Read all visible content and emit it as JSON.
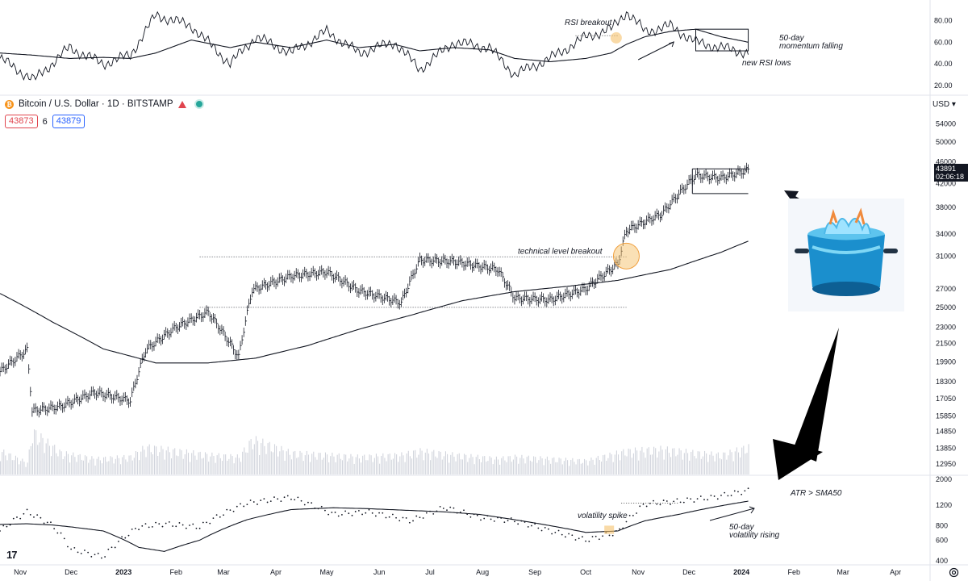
{
  "header": {
    "symbol": "Bitcoin / U.S. Dollar · 1D · BITSTAMP",
    "bid": "43873",
    "spread": "6",
    "ask": "43879",
    "currency": "USD",
    "last_price": "43891",
    "countdown": "02:06:18"
  },
  "colors": {
    "bid": "#e0454e",
    "ask": "#2962ff",
    "coin": "#f7931a",
    "highlight": "#f5c16c",
    "price_tag": "#131722"
  },
  "icons": [
    "bitcoin-icon",
    "flag-icon",
    "market-status-dot-icon",
    "tradingview-logo-icon",
    "settings-gear-icon",
    "boiling-pot-image",
    "arrow-pointer-icon"
  ],
  "annotations": {
    "rsi_breakout": "RSI breakout",
    "momentum_line1": "50-day",
    "momentum_line2": "momentum falling",
    "new_rsi_lows": "new RSI lows",
    "technical_breakout": "technical level breakout",
    "volatility_spike": "volatility spike",
    "atr_sma": "ATR > SMA50",
    "vol_rising_line1": "50-day",
    "vol_rising_line2": "volatility rising"
  },
  "chart_data": [
    {
      "type": "line",
      "name": "RSI panel",
      "yticks": [
        "80.00",
        "60.00",
        "40.00",
        "20.00"
      ],
      "ylim": [
        20,
        90
      ],
      "x": [
        "2022-10-20",
        "2022-11-09",
        "2022-11-30",
        "2022-12-20",
        "2023-01-05",
        "2023-01-20",
        "2023-02-10",
        "2023-03-05",
        "2023-03-20",
        "2023-04-10",
        "2023-05-01",
        "2023-05-20",
        "2023-06-10",
        "2023-06-25",
        "2023-07-15",
        "2023-08-05",
        "2023-08-20",
        "2023-09-10",
        "2023-10-01",
        "2023-10-16",
        "2023-10-25",
        "2023-11-05",
        "2023-11-20",
        "2023-12-05",
        "2023-12-20",
        "2024-01-05"
      ],
      "series": [
        {
          "values": [
            45,
            25,
            55,
            40,
            48,
            85,
            75,
            40,
            65,
            50,
            70,
            50,
            60,
            35,
            60,
            55,
            30,
            45,
            65,
            72,
            88,
            70,
            75,
            60,
            55,
            50
          ]
        },
        {
          "values": [
            50,
            48,
            45,
            46,
            45,
            50,
            62,
            55,
            60,
            55,
            62,
            55,
            58,
            52,
            55,
            53,
            45,
            42,
            45,
            50,
            58,
            65,
            70,
            72,
            65,
            60
          ]
        }
      ]
    },
    {
      "type": "bar",
      "name": "BTCUSD daily",
      "yticks": [
        "54000",
        "50000",
        "46000",
        "42000",
        "38000",
        "34000",
        "31000",
        "27000",
        "25000",
        "23000",
        "21500",
        "19900",
        "18300",
        "17050",
        "15850",
        "14850",
        "13850",
        "12950"
      ],
      "xticks": [
        "Nov",
        "Dec",
        "2023",
        "Feb",
        "Mar",
        "Apr",
        "May",
        "Jun",
        "Jul",
        "Aug",
        "Sep",
        "Oct",
        "Nov",
        "Dec",
        "2024",
        "Feb",
        "Mar",
        "Apr"
      ],
      "x": [
        "2022-10-20",
        "2022-11-05",
        "2022-11-08",
        "2022-11-25",
        "2022-12-15",
        "2023-01-05",
        "2023-01-14",
        "2023-02-01",
        "2023-02-20",
        "2023-03-10",
        "2023-03-18",
        "2023-04-10",
        "2023-05-01",
        "2023-05-20",
        "2023-06-14",
        "2023-06-25",
        "2023-07-15",
        "2023-08-10",
        "2023-08-20",
        "2023-09-10",
        "2023-10-01",
        "2023-10-20",
        "2023-10-25",
        "2023-11-15",
        "2023-12-05",
        "2023-12-20",
        "2024-01-05"
      ],
      "close": [
        19100,
        20900,
        16200,
        16500,
        17500,
        16900,
        20900,
        23000,
        24500,
        20300,
        26900,
        28500,
        29000,
        26800,
        25500,
        30500,
        30300,
        29300,
        26000,
        25800,
        27000,
        30000,
        34500,
        37000,
        43500,
        43000,
        44500
      ],
      "sma200_x": [
        "2022-10-20",
        "2022-11-20",
        "2022-12-20",
        "2023-01-20",
        "2023-02-20",
        "2023-03-20",
        "2023-04-20",
        "2023-05-20",
        "2023-06-20",
        "2023-07-20",
        "2023-08-20",
        "2023-09-20",
        "2023-10-20",
        "2023-11-20",
        "2023-12-20",
        "2024-01-05"
      ],
      "sma200": [
        26500,
        23500,
        21000,
        19800,
        19800,
        20200,
        21300,
        22800,
        24200,
        25700,
        26700,
        27300,
        28000,
        29300,
        31500,
        33000
      ],
      "levels": [
        {
          "label": "technical level breakout",
          "value": 30900,
          "from": "2023-02-15",
          "to": "2023-10-25"
        },
        {
          "label": "",
          "value": 25000,
          "from": "2023-02-15",
          "to": "2023-10-25"
        },
        {
          "label": "",
          "value": 44700,
          "from": "2023-12-03",
          "to": "2024-01-05"
        },
        {
          "label": "",
          "value": 40300,
          "from": "2023-12-03",
          "to": "2024-01-05"
        }
      ],
      "volume": [
        60,
        30,
        110,
        55,
        40,
        45,
        70,
        60,
        50,
        45,
        90,
        55,
        50,
        45,
        50,
        60,
        50,
        40,
        45,
        40,
        35,
        55,
        60,
        65,
        55,
        50,
        70
      ]
    },
    {
      "type": "scatter",
      "name": "ATR panel",
      "yticks": [
        "2000",
        "1200",
        "800",
        "600",
        "400"
      ],
      "x": [
        "2022-10-20",
        "2022-11-05",
        "2022-11-20",
        "2022-12-01",
        "2022-12-20",
        "2023-01-10",
        "2023-01-25",
        "2023-02-15",
        "2023-03-15",
        "2023-04-10",
        "2023-05-05",
        "2023-05-25",
        "2023-06-20",
        "2023-07-10",
        "2023-07-30",
        "2023-08-20",
        "2023-09-10",
        "2023-10-01",
        "2023-10-20",
        "2023-11-05",
        "2023-11-25",
        "2023-12-15",
        "2024-01-05"
      ],
      "series": [
        {
          "values": [
            720,
            1050,
            800,
            500,
            430,
            780,
            830,
            780,
            1250,
            1400,
            1000,
            1050,
            880,
            1150,
            940,
            880,
            720,
            600,
            700,
            1230,
            1300,
            1400,
            1600
          ]
        },
        {
          "values": [
            820,
            830,
            810,
            780,
            720,
            520,
            480,
            600,
            900,
            1100,
            1140,
            1120,
            1080,
            1050,
            1000,
            900,
            800,
            700,
            720,
            880,
            1000,
            1150,
            1300
          ]
        }
      ]
    }
  ]
}
